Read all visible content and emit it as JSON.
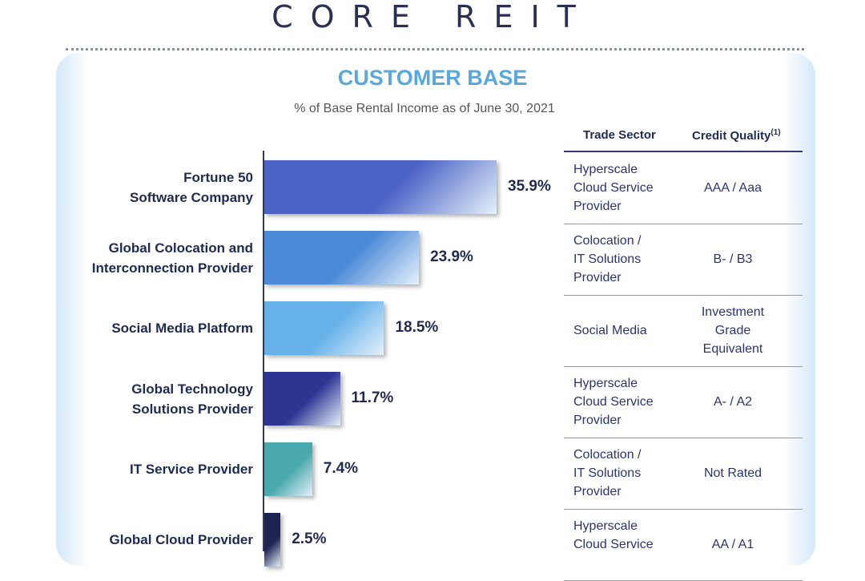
{
  "brand": "CORE REIT",
  "chart_data": {
    "type": "bar",
    "orientation": "horizontal",
    "title": "CUSTOMER BASE",
    "subtitle": "% of Base Rental Income as of June 30, 2021",
    "categories": [
      "Fortune 50 Software Company",
      "Global Colocation and Interconnection Provider",
      "Social Media Platform",
      "Global Technology Solutions Provider",
      "IT Service Provider",
      "Global Cloud Provider"
    ],
    "category_lines": [
      [
        "Fortune 50",
        "Software Company"
      ],
      [
        "Global Colocation and",
        "Interconnection Provider"
      ],
      [
        "Social Media Platform"
      ],
      [
        "Global Technology",
        "Solutions Provider"
      ],
      [
        "IT Service Provider"
      ],
      [
        "Global Cloud Provider"
      ]
    ],
    "values": [
      35.9,
      23.9,
      18.5,
      11.7,
      7.4,
      2.5
    ],
    "value_labels": [
      "35.9%",
      "23.9%",
      "18.5%",
      "11.7%",
      "7.4%",
      "2.5%"
    ],
    "colors": [
      "#4a62c4",
      "#4b8ad6",
      "#66b2e8",
      "#2c3591",
      "#4aa9ac",
      "#1d2452"
    ]
  },
  "table": {
    "headers": {
      "sector": "Trade Sector",
      "credit": "Credit Quality",
      "credit_note": "(1)"
    },
    "rows": [
      {
        "sector": [
          "Hyperscale",
          "Cloud Service",
          "Provider"
        ],
        "credit": [
          "AAA / Aaa"
        ]
      },
      {
        "sector": [
          "Colocation /",
          "IT Solutions",
          "Provider"
        ],
        "credit": [
          "B- / B3"
        ]
      },
      {
        "sector": [
          "Social Media"
        ],
        "credit": [
          "Investment",
          "Grade",
          "Equivalent"
        ]
      },
      {
        "sector": [
          "Hyperscale",
          "Cloud Service",
          "Provider"
        ],
        "credit": [
          "A- / A2"
        ]
      },
      {
        "sector": [
          "Colocation /",
          "IT Solutions",
          "Provider"
        ],
        "credit": [
          "Not Rated"
        ]
      },
      {
        "sector": [
          "Hyperscale",
          "Cloud Service"
        ],
        "credit": [
          "AA / A1"
        ]
      }
    ]
  }
}
